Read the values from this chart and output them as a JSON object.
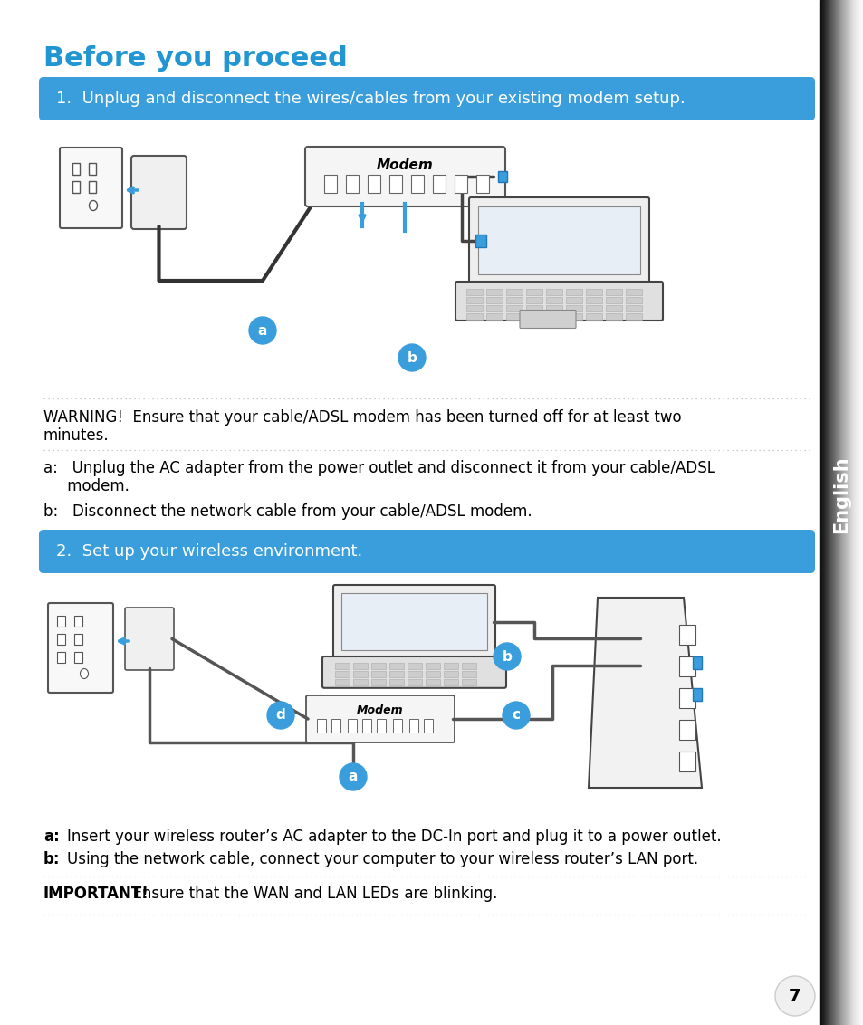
{
  "title": "Before you proceed",
  "title_color": "#2196D3",
  "page_bg": "#ffffff",
  "sidebar_text": "English",
  "sidebar_text_color": "#ffffff",
  "step1_text": "1.  Unplug and disconnect the wires/cables from your existing modem setup.",
  "step2_text": "2.  Set up your wireless environment.",
  "step_bg": "#3a9edc",
  "step_text_color": "#ffffff",
  "warning_line1": "WARNING!  Ensure that your cable/ADSL modem has been turned off for at least two",
  "warning_line2": "minutes.",
  "item_a1_line1": "a:   Unplug the AC adapter from the power outlet and disconnect it from your cable/ADSL",
  "item_a1_line2": "     modem.",
  "item_b1": "b:   Disconnect the network cable from your cable/ADSL modem.",
  "item_a2_text": "Insert your wireless router’s AC adapter to the DC-In port and plug it to a power outlet.",
  "item_b2_text": "Using the network cable, connect your computer to your wireless router’s LAN port.",
  "important_bold": "IMPORTANT!",
  "important_text": "  Ensure that the WAN and LAN LEDs are blinking.",
  "page_number": "7",
  "dot_color": "#aaaaaa",
  "body_text_color": "#000000",
  "circle_color": "#3a9edc",
  "circle_text_color": "#ffffff"
}
